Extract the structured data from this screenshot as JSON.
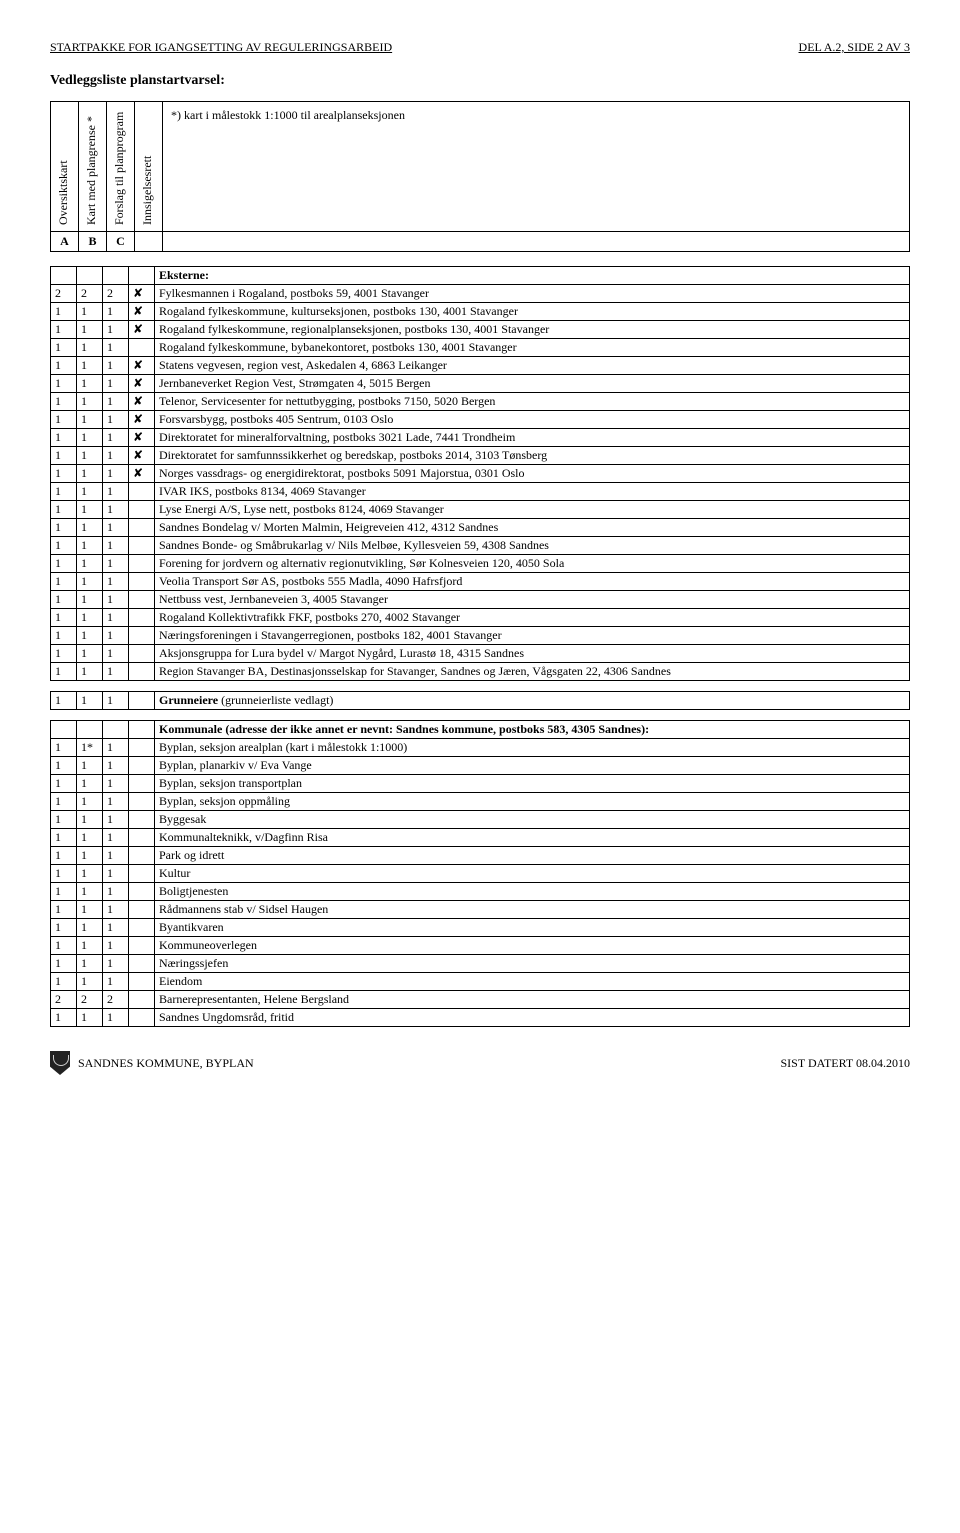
{
  "header": {
    "left": "STARTPAKKE FOR IGANGSETTING AV REGULERINGSARBEID",
    "right": "DEL A.2, SIDE 2 AV 3"
  },
  "title": "Vedleggsliste planstartvarsel:",
  "top_table": {
    "rot_headers": [
      "Oversiktskart",
      "Kart med plangrense *",
      "Forslag til planprogram",
      "Innsigelsesrett"
    ],
    "wide_text": "*) kart i målestokk 1:1000 til arealplanseksjonen",
    "abc": [
      "A",
      "B",
      "C",
      ""
    ]
  },
  "groups": [
    {
      "header": "Eksterne:",
      "rows": [
        {
          "a": "2",
          "b": "2",
          "c": "2",
          "x": "✘",
          "t": "Fylkesmannen i Rogaland, postboks 59, 4001 Stavanger"
        },
        {
          "a": "1",
          "b": "1",
          "c": "1",
          "x": "✘",
          "t": "Rogaland fylkeskommune, kulturseksjonen, postboks 130, 4001 Stavanger"
        },
        {
          "a": "1",
          "b": "1",
          "c": "1",
          "x": "✘",
          "t": "Rogaland fylkeskommune, regionalplanseksjonen, postboks 130, 4001 Stavanger"
        },
        {
          "a": "1",
          "b": "1",
          "c": "1",
          "x": "",
          "t": "Rogaland fylkeskommune, bybanekontoret, postboks 130, 4001 Stavanger"
        },
        {
          "a": "1",
          "b": "1",
          "c": "1",
          "x": "✘",
          "t": "Statens vegvesen, region vest, Askedalen 4, 6863 Leikanger"
        },
        {
          "a": "1",
          "b": "1",
          "c": "1",
          "x": "✘",
          "t": "Jernbaneverket Region Vest, Strømgaten 4, 5015 Bergen"
        },
        {
          "a": "1",
          "b": "1",
          "c": "1",
          "x": "✘",
          "t": "Telenor, Servicesenter for nettutbygging, postboks 7150, 5020 Bergen"
        },
        {
          "a": "1",
          "b": "1",
          "c": "1",
          "x": "✘",
          "t": "Forsvarsbygg, postboks 405 Sentrum, 0103 Oslo"
        },
        {
          "a": "1",
          "b": "1",
          "c": "1",
          "x": "✘",
          "t": "Direktoratet for mineralforvaltning, postboks 3021 Lade, 7441 Trondheim"
        },
        {
          "a": "1",
          "b": "1",
          "c": "1",
          "x": "✘",
          "t": "Direktoratet for samfunnssikkerhet og beredskap, postboks 2014, 3103 Tønsberg"
        },
        {
          "a": "1",
          "b": "1",
          "c": "1",
          "x": "✘",
          "t": "Norges vassdrags- og energidirektorat, postboks 5091 Majorstua, 0301 Oslo"
        },
        {
          "a": "1",
          "b": "1",
          "c": "1",
          "x": "",
          "t": "IVAR IKS, postboks 8134, 4069 Stavanger"
        },
        {
          "a": "1",
          "b": "1",
          "c": "1",
          "x": "",
          "t": "Lyse Energi A/S, Lyse nett, postboks 8124, 4069 Stavanger"
        },
        {
          "a": "1",
          "b": "1",
          "c": "1",
          "x": "",
          "t": "Sandnes Bondelag v/ Morten Malmin, Heigreveien 412, 4312 Sandnes"
        },
        {
          "a": "1",
          "b": "1",
          "c": "1",
          "x": "",
          "t": "Sandnes Bonde- og Småbrukarlag v/ Nils Melbøe, Kyllesveien 59, 4308 Sandnes"
        },
        {
          "a": "1",
          "b": "1",
          "c": "1",
          "x": "",
          "t": "Forening for jordvern og alternativ regionutvikling, Sør Kolnesveien 120, 4050 Sola"
        },
        {
          "a": "1",
          "b": "1",
          "c": "1",
          "x": "",
          "t": "Veolia Transport Sør AS, postboks 555 Madla, 4090 Hafrsfjord"
        },
        {
          "a": "1",
          "b": "1",
          "c": "1",
          "x": "",
          "t": "Nettbuss vest, Jernbaneveien 3, 4005 Stavanger"
        },
        {
          "a": "1",
          "b": "1",
          "c": "1",
          "x": "",
          "t": "Rogaland Kollektivtrafikk FKF, postboks 270, 4002 Stavanger"
        },
        {
          "a": "1",
          "b": "1",
          "c": "1",
          "x": "",
          "t": "Næringsforeningen i Stavangerregionen, postboks 182, 4001 Stavanger"
        },
        {
          "a": "1",
          "b": "1",
          "c": "1",
          "x": "",
          "t": "Aksjonsgruppa for Lura bydel v/ Margot Nygård, Lurastø 18, 4315 Sandnes"
        },
        {
          "a": "1",
          "b": "1",
          "c": "1",
          "x": "",
          "t": "Region Stavanger BA, Destinasjonsselskap for Stavanger, Sandnes og Jæren, Vågsgaten 22, 4306 Sandnes"
        }
      ]
    },
    {
      "rows": [
        {
          "a": "1",
          "b": "1",
          "c": "1",
          "x": "",
          "t_bold": "Grunneiere",
          "t_rest": " (grunneierliste vedlagt)"
        }
      ]
    },
    {
      "header": "Kommunale (adresse der ikke annet er nevnt: Sandnes kommune, postboks 583, 4305 Sandnes):",
      "rows": [
        {
          "a": "1",
          "b": "1*",
          "c": "1",
          "x": "",
          "t": "Byplan, seksjon arealplan (kart i målestokk 1:1000)"
        },
        {
          "a": "1",
          "b": "1",
          "c": "1",
          "x": "",
          "t": "Byplan, planarkiv v/ Eva Vange"
        },
        {
          "a": "1",
          "b": "1",
          "c": "1",
          "x": "",
          "t": "Byplan, seksjon transportplan"
        },
        {
          "a": "1",
          "b": "1",
          "c": "1",
          "x": "",
          "t": "Byplan, seksjon oppmåling"
        },
        {
          "a": "1",
          "b": "1",
          "c": "1",
          "x": "",
          "t": "Byggesak"
        },
        {
          "a": "1",
          "b": "1",
          "c": "1",
          "x": "",
          "t": "Kommunalteknikk, v/Dagfinn Risa"
        },
        {
          "a": "1",
          "b": "1",
          "c": "1",
          "x": "",
          "t": "Park og idrett"
        },
        {
          "a": "1",
          "b": "1",
          "c": "1",
          "x": "",
          "t": "Kultur"
        },
        {
          "a": "1",
          "b": "1",
          "c": "1",
          "x": "",
          "t": "Boligtjenesten"
        },
        {
          "a": "1",
          "b": "1",
          "c": "1",
          "x": "",
          "t": "Rådmannens stab v/ Sidsel Haugen"
        },
        {
          "a": "1",
          "b": "1",
          "c": "1",
          "x": "",
          "t": "Byantikvaren"
        },
        {
          "a": "1",
          "b": "1",
          "c": "1",
          "x": "",
          "t": "Kommuneoverlegen"
        },
        {
          "a": "1",
          "b": "1",
          "c": "1",
          "x": "",
          "t": "Næringssjefen"
        },
        {
          "a": "1",
          "b": "1",
          "c": "1",
          "x": "",
          "t": "Eiendom"
        },
        {
          "a": "2",
          "b": "2",
          "c": "2",
          "x": "",
          "t": "Barnerepresentanten, Helene Bergsland"
        },
        {
          "a": "1",
          "b": "1",
          "c": "1",
          "x": "",
          "t": "Sandnes Ungdomsråd, fritid"
        }
      ]
    }
  ],
  "footer": {
    "left": "SANDNES KOMMUNE, BYPLAN",
    "right": "SIST DATERT 08.04.2010"
  }
}
